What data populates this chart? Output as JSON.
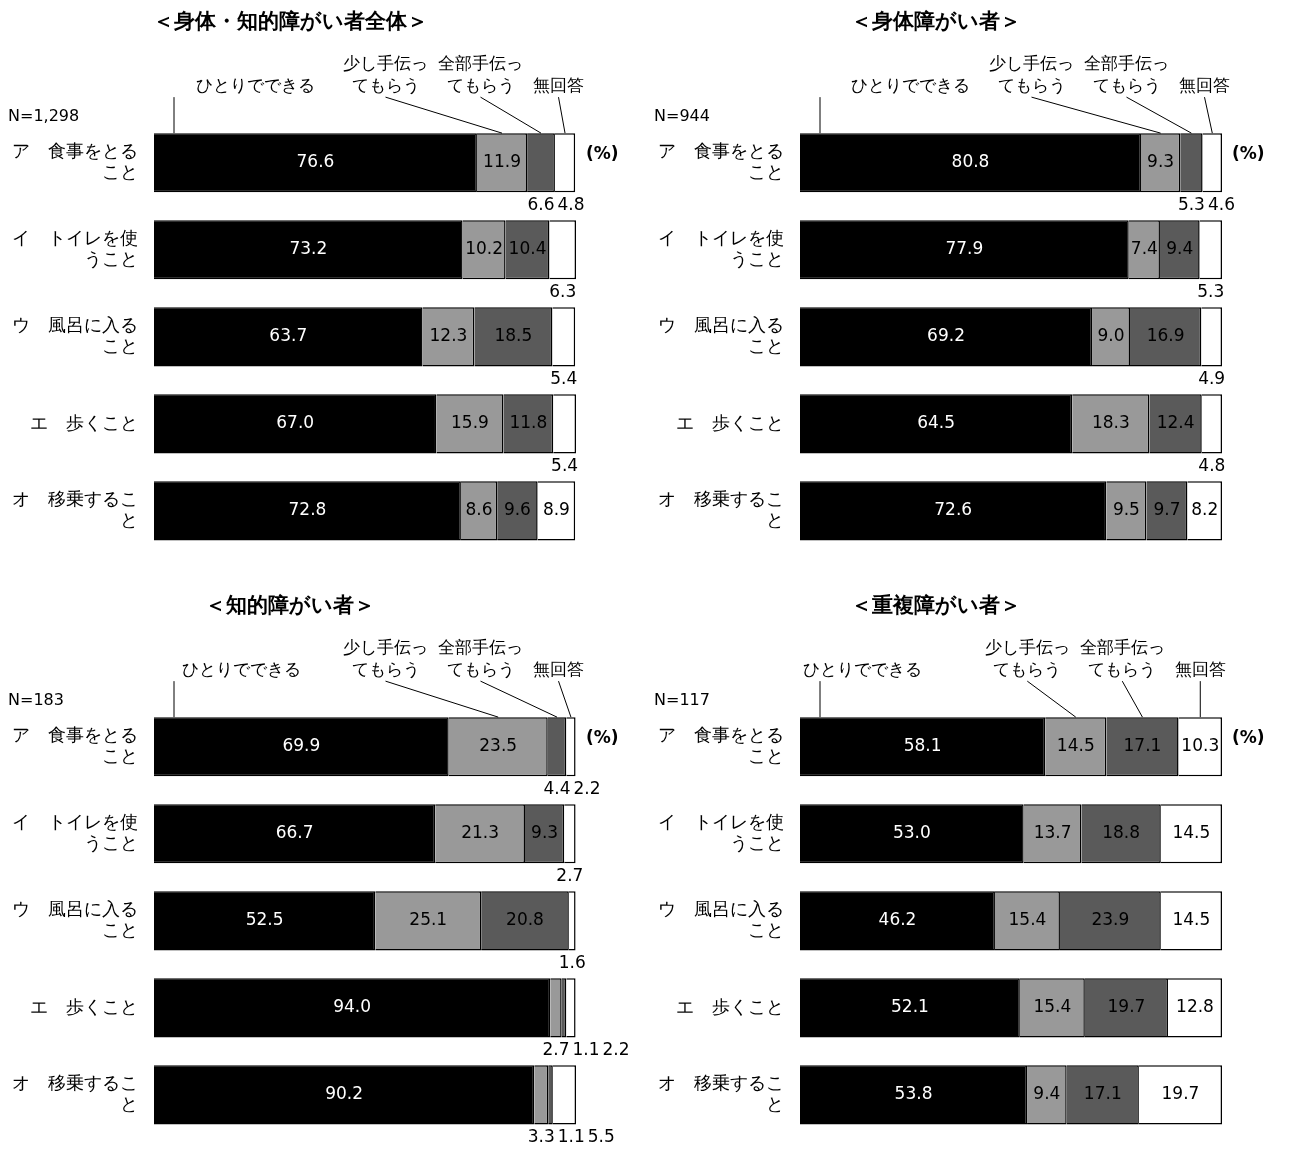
{
  "chart_data": [
    {
      "type": "bar",
      "orientation": "horizontal",
      "stacked": true,
      "title": "＜身体・知的障がい者全体＞",
      "categories": [
        "ア　食事をとること",
        "イ　トイレを使うこと",
        "ウ　風呂に入ること",
        "エ　歩くこと",
        "オ　移乗すること"
      ],
      "series": [
        {
          "name": "ひとりでできる",
          "color": "#000000",
          "values": [
            76.6,
            73.2,
            63.7,
            67.0,
            72.8
          ],
          "value_labels": [
            "76.6",
            "73.2",
            "63.7",
            "67.0",
            "72.8"
          ]
        },
        {
          "name": "少し手伝ってもらう",
          "color": "#999999",
          "values": [
            11.9,
            10.2,
            12.3,
            15.9,
            8.6
          ],
          "value_labels": [
            "11.9",
            "10.2",
            "12.3",
            "15.9",
            "8.6"
          ]
        },
        {
          "name": "全部手伝ってもらう",
          "color": "#5a5a5a",
          "values": [
            6.6,
            10.4,
            18.5,
            11.8,
            9.6
          ],
          "value_labels": [
            "6.6",
            "10.4",
            "18.5",
            "11.8",
            "9.6"
          ]
        },
        {
          "name": "無回答",
          "color": "#ffffff",
          "values": [
            4.8,
            6.3,
            5.4,
            5.4,
            8.9
          ],
          "value_labels": [
            "4.8",
            "6.3",
            "5.4",
            "5.4",
            "8.9"
          ]
        }
      ],
      "legend": "top",
      "tick_labels": "y",
      "annotations": [
        "N=1,298",
        "(%)"
      ]
    },
    {
      "type": "bar",
      "orientation": "horizontal",
      "stacked": true,
      "title": "＜身体障がい者＞",
      "categories": [
        "ア　食事をとること",
        "イ　トイレを使うこと",
        "ウ　風呂に入ること",
        "エ　歩くこと",
        "オ　移乗すること"
      ],
      "series": [
        {
          "name": "ひとりでできる",
          "color": "#000000",
          "values": [
            80.8,
            77.9,
            69.2,
            64.5,
            72.6
          ],
          "value_labels": [
            "80.8",
            "77.9",
            "69.2",
            "64.5",
            "72.6"
          ]
        },
        {
          "name": "少し手伝ってもらう",
          "color": "#999999",
          "values": [
            9.3,
            7.4,
            9.0,
            18.3,
            9.5
          ],
          "value_labels": [
            "9.3",
            "7.4",
            "9.0",
            "18.3",
            "9.5"
          ]
        },
        {
          "name": "全部手伝ってもらう",
          "color": "#5a5a5a",
          "values": [
            5.3,
            9.4,
            16.9,
            12.4,
            9.7
          ],
          "value_labels": [
            "5.3",
            "9.4",
            "16.9",
            "12.4",
            "9.7"
          ]
        },
        {
          "name": "無回答",
          "color": "#ffffff",
          "values": [
            4.6,
            5.3,
            4.9,
            4.8,
            8.2
          ],
          "value_labels": [
            "4.6",
            "5.3",
            "4.9",
            "4.8",
            "8.2"
          ]
        }
      ],
      "legend": "top",
      "tick_labels": "y",
      "annotations": [
        "N=944",
        "(%)"
      ]
    },
    {
      "type": "bar",
      "orientation": "horizontal",
      "stacked": true,
      "title": "＜知的障がい者＞",
      "categories": [
        "ア　食事をとること",
        "イ　トイレを使うこと",
        "ウ　風呂に入ること",
        "エ　歩くこと",
        "オ　移乗すること"
      ],
      "series": [
        {
          "name": "ひとりでできる",
          "color": "#000000",
          "values": [
            69.9,
            66.7,
            52.5,
            94.0,
            90.2
          ],
          "value_labels": [
            "69.9",
            "66.7",
            "52.5",
            "94.0",
            "90.2"
          ]
        },
        {
          "name": "少し手伝ってもらう",
          "color": "#999999",
          "values": [
            23.5,
            21.3,
            25.1,
            2.7,
            3.3
          ],
          "value_labels": [
            "23.5",
            "21.3",
            "25.1",
            "2.7",
            "3.3"
          ]
        },
        {
          "name": "全部手伝ってもらう",
          "color": "#5a5a5a",
          "values": [
            4.4,
            9.3,
            20.8,
            1.1,
            1.1
          ],
          "value_labels": [
            "4.4",
            "9.3",
            "20.8",
            "1.1",
            "1.1"
          ]
        },
        {
          "name": "無回答",
          "color": "#ffffff",
          "values": [
            2.2,
            2.7,
            1.6,
            2.2,
            5.5
          ],
          "value_labels": [
            "2.2",
            "2.7",
            "1.6",
            "2.2",
            "5.5"
          ]
        }
      ],
      "legend": "top",
      "tick_labels": "y",
      "annotations": [
        "N=183",
        "(%)"
      ]
    },
    {
      "type": "bar",
      "orientation": "horizontal",
      "stacked": true,
      "title": "＜重複障がい者＞",
      "categories": [
        "ア　食事をとること",
        "イ　トイレを使うこと",
        "ウ　風呂に入ること",
        "エ　歩くこと",
        "オ　移乗すること"
      ],
      "series": [
        {
          "name": "ひとりでできる",
          "color": "#000000",
          "values": [
            58.1,
            53.0,
            46.2,
            52.1,
            53.8
          ],
          "value_labels": [
            "58.1",
            "53.0",
            "46.2",
            "52.1",
            "53.8"
          ]
        },
        {
          "name": "少し手伝ってもらう",
          "color": "#999999",
          "values": [
            14.5,
            13.7,
            15.4,
            15.4,
            9.4
          ],
          "value_labels": [
            "14.5",
            "13.7",
            "15.4",
            "15.4",
            "9.4"
          ]
        },
        {
          "name": "全部手伝ってもらう",
          "color": "#5a5a5a",
          "values": [
            17.1,
            18.8,
            23.9,
            19.7,
            17.1
          ],
          "value_labels": [
            "17.1",
            "18.8",
            "23.9",
            "19.7",
            "17.1"
          ]
        },
        {
          "name": "無回答",
          "color": "#ffffff",
          "values": [
            10.3,
            14.5,
            14.5,
            12.8,
            19.7
          ],
          "value_labels": [
            "10.3",
            "14.5",
            "14.5",
            "12.8",
            "19.7"
          ]
        }
      ],
      "legend": "top",
      "tick_labels": "y",
      "annotations": [
        "N=117",
        "(%)"
      ]
    }
  ]
}
